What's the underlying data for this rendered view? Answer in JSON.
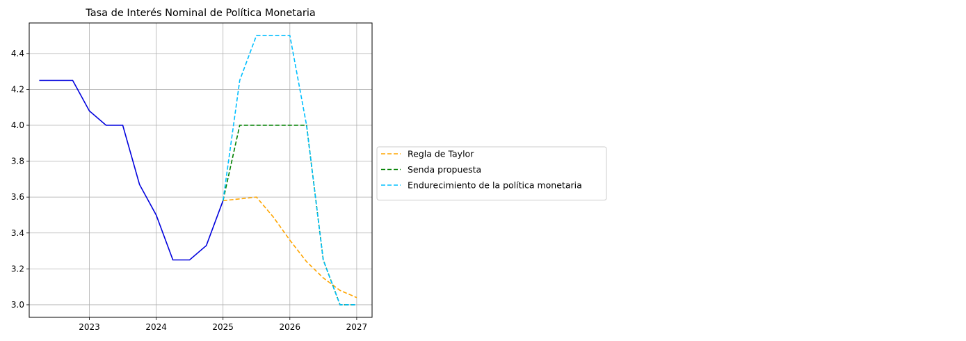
{
  "chart_data": {
    "type": "line",
    "title": "Tasa de Interés Nominal de Política Monetaria",
    "xlabel": "",
    "ylabel": "",
    "xlim": [
      2022.1,
      2027.23
    ],
    "ylim": [
      2.93,
      4.57
    ],
    "x_ticks": [
      2023,
      2024,
      2025,
      2026,
      2027
    ],
    "y_ticks": [
      3.0,
      3.2,
      3.4,
      3.6,
      3.8,
      4.0,
      4.2,
      4.4
    ],
    "grid": true,
    "legend_position": "center-left outside right",
    "series": [
      {
        "name": "",
        "color": "#0000dd",
        "style": "solid",
        "x": [
          2022.25,
          2022.5,
          2022.75,
          2023.0,
          2023.25,
          2023.5,
          2023.75,
          2024.0,
          2024.25,
          2024.5,
          2024.75,
          2025.0
        ],
        "y": [
          4.25,
          4.25,
          4.25,
          4.08,
          4.0,
          4.0,
          3.67,
          3.5,
          3.25,
          3.25,
          3.33,
          3.58
        ]
      },
      {
        "name": "Regla de Taylor",
        "color": "#ffa500",
        "style": "dashed",
        "x": [
          2025.0,
          2025.25,
          2025.5,
          2025.75,
          2026.0,
          2026.25,
          2026.5,
          2026.75,
          2027.0
        ],
        "y": [
          3.58,
          3.59,
          3.6,
          3.49,
          3.36,
          3.24,
          3.15,
          3.08,
          3.04
        ]
      },
      {
        "name": "Senda propuesta",
        "color": "#008000",
        "style": "dashed",
        "x": [
          2025.0,
          2025.25,
          2025.5,
          2025.75,
          2026.0,
          2026.25,
          2026.5,
          2026.75,
          2027.0
        ],
        "y": [
          3.58,
          4.0,
          4.0,
          4.0,
          4.0,
          4.0,
          3.25,
          3.0,
          3.0
        ]
      },
      {
        "name": "Endurecimiento de la política monetaria",
        "color": "#00bfff",
        "style": "dashed",
        "x": [
          2025.0,
          2025.25,
          2025.5,
          2025.75,
          2026.0,
          2026.25,
          2026.5,
          2026.75,
          2027.0
        ],
        "y": [
          3.58,
          4.25,
          4.5,
          4.5,
          4.5,
          4.0,
          3.25,
          3.0,
          3.0
        ]
      }
    ]
  }
}
